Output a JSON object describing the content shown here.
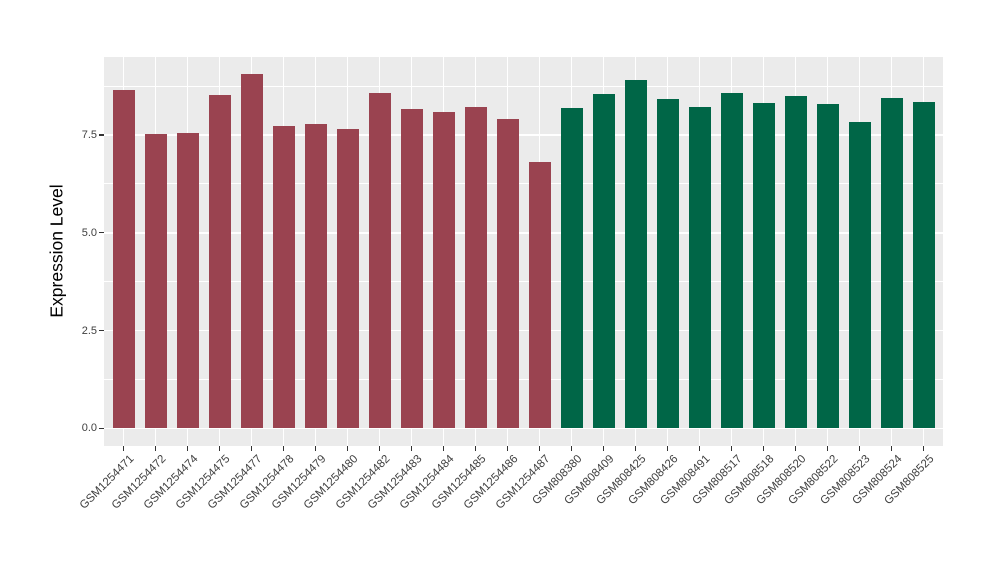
{
  "chart_data": {
    "type": "bar",
    "title": "",
    "xlabel": "",
    "ylabel": "Expression Level",
    "y_tick_labels": [
      "0.0",
      "2.5",
      "5.0",
      "7.5"
    ],
    "y_tick_values": [
      0,
      2.5,
      5,
      7.5
    ],
    "y_minor_values": [
      1.25,
      3.75,
      6.25,
      8.75
    ],
    "ylim": [
      -0.45,
      9.49
    ],
    "grid": "major and minor horizontal white lines plus vertical white line per category on grey panel",
    "legend_position": "none",
    "categories": [
      "GSM1254471",
      "GSM1254472",
      "GSM1254474",
      "GSM1254475",
      "GSM1254477",
      "GSM1254478",
      "GSM1254479",
      "GSM1254480",
      "GSM1254482",
      "GSM1254483",
      "GSM1254484",
      "GSM1254485",
      "GSM1254486",
      "GSM1254487",
      "GSM808380",
      "GSM808409",
      "GSM808425",
      "GSM808426",
      "GSM808491",
      "GSM808517",
      "GSM808518",
      "GSM808520",
      "GSM808522",
      "GSM808523",
      "GSM808524",
      "GSM808525"
    ],
    "values": [
      8.65,
      7.52,
      7.56,
      8.52,
      9.07,
      7.74,
      7.77,
      7.65,
      8.58,
      8.16,
      8.08,
      8.22,
      7.91,
      6.82,
      8.19,
      8.54,
      8.91,
      8.41,
      8.22,
      8.57,
      8.32,
      8.49,
      8.28,
      7.82,
      8.45,
      8.34
    ],
    "groups": [
      "maroon",
      "maroon",
      "maroon",
      "maroon",
      "maroon",
      "maroon",
      "maroon",
      "maroon",
      "maroon",
      "maroon",
      "maroon",
      "maroon",
      "maroon",
      "maroon",
      "green",
      "green",
      "green",
      "green",
      "green",
      "green",
      "green",
      "green",
      "green",
      "green",
      "green",
      "green"
    ],
    "group_colors": {
      "maroon": "#9A4350",
      "green": "#006647"
    }
  },
  "colors": {
    "page_background": "#FFFFFF",
    "panel_background": "#EBEBEB",
    "gridline": "#FFFFFF",
    "axis_text": "#404040",
    "axis_title": "#000000",
    "tick_mark": "#333333"
  }
}
